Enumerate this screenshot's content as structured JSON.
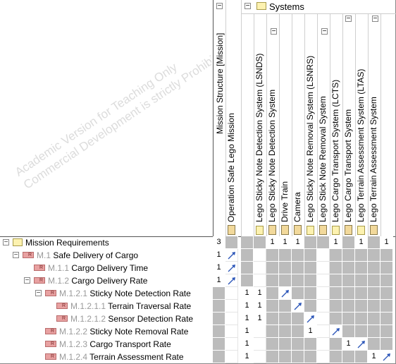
{
  "matrix": {
    "watermark": [
      "Academic Version for Teaching Only",
      "Commercial Development is strictly Prohibited"
    ],
    "column_groups": {
      "mission_structure": "Mission Structure [Mission]",
      "systems": "Systems"
    },
    "columns": [
      {
        "label": "Operation Safe Lego Mission",
        "icon": "mission-icon",
        "count": "3"
      },
      {
        "label": "Lego Sticky Note Detection System (LSNDS)",
        "icon": "folder-icon",
        "count": ""
      },
      {
        "label": "Lego Sticky Note Detection System",
        "icon": "block-icon",
        "count": "1"
      },
      {
        "label": "Drive Train",
        "icon": "block-icon",
        "count": "1"
      },
      {
        "label": "Camera",
        "icon": "block-icon",
        "count": "1"
      },
      {
        "label": "Lego Sticky Note Removal System (LSNRS)",
        "icon": "folder-icon",
        "count": ""
      },
      {
        "label": "Lego Stick Note Removal System",
        "icon": "block-icon",
        "count": "1"
      },
      {
        "label": "Lego Cargo Transport System (LCTS)",
        "icon": "folder-icon",
        "count": ""
      },
      {
        "label": "Lego Cargo Transport System",
        "icon": "block-icon",
        "count": "1"
      },
      {
        "label": "Lego Terrain Assessment System (LTAS)",
        "icon": "folder-icon",
        "count": ""
      },
      {
        "label": "Lego Terrain Assessment System",
        "icon": "block-icon",
        "count": "1"
      }
    ],
    "rows": [
      {
        "id": "",
        "label": "Mission Requirements",
        "level": 0,
        "kind": "folder",
        "toggle": "−",
        "counts": [
          "",
          "",
          "",
          "",
          "",
          "",
          "",
          "",
          "",
          "",
          ""
        ]
      },
      {
        "id": "M.1",
        "label": "Safe Delivery of Cargo",
        "level": 1,
        "kind": "req",
        "toggle": "−",
        "counts": [
          "1",
          "",
          "",
          "",
          "",
          "",
          "",
          "",
          "",
          "",
          ""
        ]
      },
      {
        "id": "M.1.1",
        "label": "Cargo Delivery Time",
        "level": 2,
        "kind": "req",
        "toggle": "",
        "counts": [
          "1",
          "",
          "",
          "",
          "",
          "",
          "",
          "",
          "",
          "",
          ""
        ]
      },
      {
        "id": "M.1.2",
        "label": "Cargo Delivery Rate",
        "level": 2,
        "kind": "req",
        "toggle": "−",
        "counts": [
          "1",
          "",
          "",
          "",
          "",
          "",
          "",
          "",
          "",
          "",
          ""
        ]
      },
      {
        "id": "M.1.2.1",
        "label": "Sticky Note Detection Rate",
        "level": 3,
        "kind": "req",
        "toggle": "−",
        "counts": [
          "",
          "",
          "1",
          "1",
          "",
          "",
          "",
          "",
          "",
          "",
          ""
        ]
      },
      {
        "id": "M.1.2.1.1",
        "label": "Terrain Traversal Rate",
        "level": 4,
        "kind": "req",
        "toggle": "",
        "counts": [
          "",
          "",
          "1",
          "1",
          "",
          "",
          "",
          "",
          "",
          "",
          ""
        ]
      },
      {
        "id": "M.1.2.1.2",
        "label": "Sensor Detection Rate",
        "level": 4,
        "kind": "req",
        "toggle": "",
        "counts": [
          "",
          "",
          "1",
          "1",
          "",
          "",
          "",
          "",
          "",
          "",
          ""
        ]
      },
      {
        "id": "M.1.2.2",
        "label": "Sticky Note Removal Rate",
        "level": 3,
        "kind": "req",
        "toggle": "",
        "counts": [
          "",
          "",
          "1",
          "",
          "",
          "",
          "1",
          "",
          "",
          "",
          ""
        ]
      },
      {
        "id": "M.1.2.3",
        "label": "Cargo Transport Rate",
        "level": 3,
        "kind": "req",
        "toggle": "",
        "counts": [
          "",
          "",
          "1",
          "",
          "",
          "",
          "",
          "",
          "1",
          "",
          ""
        ]
      },
      {
        "id": "M.1.2.4",
        "label": "Terrain Assessment Rate",
        "level": 3,
        "kind": "req",
        "toggle": "",
        "counts": [
          "",
          "",
          "1",
          "",
          "",
          "",
          "",
          "",
          "",
          "",
          "1"
        ]
      }
    ],
    "relations": [
      {
        "row": 1,
        "col": 1
      },
      {
        "row": 2,
        "col": 1
      },
      {
        "row": 3,
        "col": 1
      },
      {
        "row": 4,
        "col": 4
      },
      {
        "row": 5,
        "col": 5
      },
      {
        "row": 6,
        "col": 6
      },
      {
        "row": 7,
        "col": 7
      },
      {
        "row": 8,
        "col": 9
      },
      {
        "row": 9,
        "col": 11
      }
    ],
    "colors": {
      "grid_gray": "#bcbcbc",
      "arrow": "#2b55b8",
      "requirement_icon": "#e8a1a1",
      "folder_icon": "#fdf2b0"
    }
  }
}
